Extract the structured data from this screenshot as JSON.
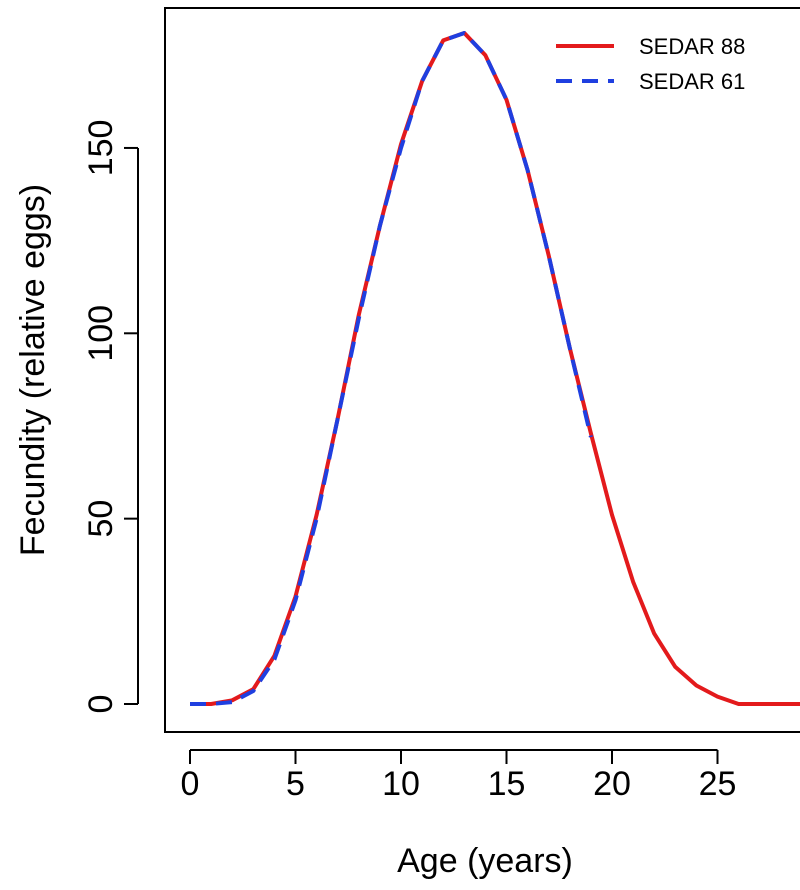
{
  "chart_data": {
    "type": "line",
    "xlabel": "Age (years)",
    "ylabel": "Fecundity (relative eggs)",
    "xlim": [
      0,
      29
    ],
    "ylim": [
      0,
      181
    ],
    "xticks": [
      0,
      5,
      10,
      15,
      20,
      25
    ],
    "yticks": [
      0,
      50,
      100,
      150
    ],
    "grid": false,
    "legend_position": "top-right",
    "series": [
      {
        "name": "SEDAR 88",
        "color": "#e31a1c",
        "style": "solid",
        "x": [
          0,
          1,
          2,
          3,
          4,
          5,
          6,
          7,
          8,
          9,
          10,
          11,
          12,
          13,
          14,
          15,
          16,
          17,
          18,
          19,
          20,
          21,
          22,
          23,
          24,
          25,
          26,
          27,
          28,
          29
        ],
        "y": [
          0,
          0,
          1,
          4,
          13,
          29,
          51,
          77,
          105,
          129,
          151,
          168,
          179,
          181,
          175,
          163,
          144,
          121,
          96,
          73,
          51,
          33,
          19,
          10,
          5,
          2,
          0,
          0,
          0,
          0
        ]
      },
      {
        "name": "SEDAR 61",
        "color": "#1f3fe0",
        "style": "dashed",
        "x": [
          0,
          1,
          2,
          3,
          4,
          5,
          6,
          7,
          8,
          9,
          10,
          11,
          12,
          13,
          14,
          15,
          16,
          17,
          18,
          19
        ],
        "y": [
          0,
          0,
          0.5,
          3.5,
          12,
          28,
          50,
          77,
          104,
          129,
          150,
          168,
          179,
          181,
          175,
          163,
          144,
          121,
          96,
          72
        ]
      }
    ]
  }
}
